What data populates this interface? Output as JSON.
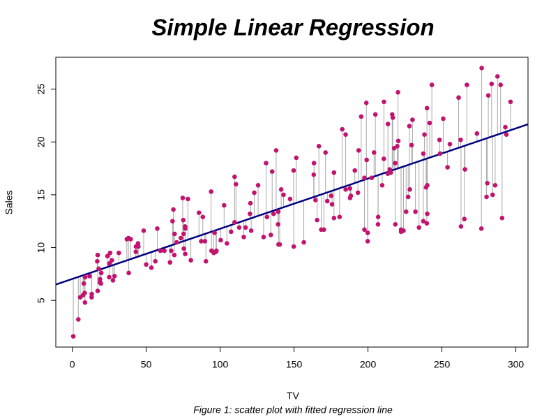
{
  "chart_data": {
    "type": "scatter",
    "title": "Simple Linear Regression",
    "xlabel": "TV",
    "ylabel": "Sales",
    "caption": "Figure 1: scatter plot with fitted regression line",
    "xlim": [
      -11.13,
      308.23
    ],
    "ylim": [
      0.584,
      28.016
    ],
    "xticks": [
      0,
      50,
      100,
      150,
      200,
      250,
      300
    ],
    "yticks": [
      5,
      10,
      15,
      20,
      25
    ],
    "grid": false,
    "regression_line": {
      "intercept": 7.0326,
      "slope": 0.0475,
      "color": "#000080"
    },
    "residual_color": "#a9a9a9",
    "series": [
      {
        "name": "Sales",
        "color": "#c2136f",
        "x": [
          230.1,
          44.5,
          17.2,
          151.5,
          180.8,
          8.7,
          57.5,
          120.2,
          8.6,
          199.8,
          66.1,
          214.7,
          23.8,
          97.5,
          204.1,
          195.4,
          67.8,
          281.4,
          69.2,
          147.3,
          218.4,
          237.4,
          13.2,
          228.3,
          62.3,
          262.9,
          142.9,
          240.1,
          248.8,
          70.6,
          292.9,
          112.9,
          97.2,
          265.6,
          95.7,
          290.7,
          266.9,
          74.7,
          43.1,
          228,
          202.5,
          177,
          293.6,
          206.9,
          25.1,
          175.1,
          89.7,
          239.9,
          227.2,
          66.9,
          199.8,
          100.4,
          216.4,
          182.6,
          262.7,
          198.9,
          7.3,
          136.2,
          210.8,
          210.7,
          53.5,
          261.3,
          239.3,
          102.7,
          131.1,
          69,
          31.5,
          139.3,
          237.4,
          216.8,
          199.1,
          109.8,
          26.8,
          129.4,
          213.4,
          16.9,
          27.5,
          120.5,
          5.4,
          116,
          76.4,
          239.8,
          75.3,
          68.4,
          213.5,
          193.2,
          76.3,
          110.7,
          88.3,
          109.8,
          134.3,
          28.6,
          217.7,
          250.9,
          107.4,
          163.3,
          197.6,
          184.9,
          289.7,
          135.2,
          222.4,
          296.4,
          280.2,
          187.9,
          238.2,
          137.9,
          25,
          90.4,
          13.1,
          255.4,
          225.8,
          241.7,
          175.7,
          209.6,
          78.2,
          75.1,
          139.2,
          76.4,
          125.7,
          19.4,
          141.3,
          18.8,
          224,
          123.1,
          229.5,
          87.2,
          7.8,
          80.2,
          220.3,
          59.6,
          0.7,
          265.2,
          8.4,
          219.8,
          36.9,
          48.3,
          25.6,
          273.7,
          43,
          184.9,
          73.4,
          193.7,
          220.5,
          104.6,
          96.2,
          140.3,
          240.1,
          243.2,
          38,
          44.7,
          280.7,
          121,
          197.6,
          171.3,
          187.8,
          4.1,
          93.9,
          149.8,
          11.7,
          131.7,
          172.5,
          85.7,
          188.4,
          163.5,
          117.2,
          234.5,
          17.9,
          206.8,
          215.4,
          284.3,
          50,
          164.5,
          19.6,
          168.4,
          222.4,
          276.9,
          248.4,
          170.2,
          276.7,
          165.6,
          156.6,
          218.5,
          56.2,
          287.6,
          253.8,
          205,
          139.5,
          191.1,
          286,
          18.7,
          39.5,
          75.5,
          17.2,
          166.8,
          149.7,
          38.2,
          94.2,
          177,
          283.6,
          232.1
        ],
        "values": [
          22.1,
          10.4,
          9.3,
          18.5,
          12.9,
          7.2,
          11.8,
          13.2,
          4.8,
          10.6,
          8.6,
          17.4,
          9.2,
          9.7,
          19,
          22.4,
          12.5,
          24.4,
          11.3,
          14.6,
          18,
          12.5,
          5.6,
          15.5,
          9.7,
          12,
          15,
          15.9,
          18.9,
          10.5,
          21.4,
          11.9,
          9.6,
          17.4,
          9.5,
          12.8,
          25.4,
          14.7,
          10.1,
          21.5,
          16.6,
          17.1,
          20.7,
          12.9,
          8.5,
          14.9,
          10.6,
          23.2,
          14.8,
          9.7,
          11.4,
          10.7,
          22.6,
          21.2,
          20.2,
          23.7,
          5.5,
          13.2,
          23.8,
          18.4,
          8.1,
          24.2,
          15.7,
          14,
          18,
          9.3,
          9.5,
          13.4,
          18.9,
          22.3,
          18.3,
          12.4,
          8.8,
          11,
          17,
          8.7,
          6.9,
          14.2,
          5.3,
          11,
          11.8,
          12.3,
          11.3,
          13.6,
          21.7,
          15.2,
          12,
          16,
          12.9,
          16.7,
          11.2,
          7.3,
          19.4,
          22.2,
          11.5,
          16.9,
          11.7,
          15.5,
          25.4,
          17.2,
          11.7,
          23.8,
          14.8,
          14.7,
          20.7,
          19.2,
          7.2,
          8.7,
          5.3,
          19.8,
          13.4,
          21.8,
          14.1,
          15.9,
          14.6,
          12.6,
          12.2,
          9.4,
          15.9,
          6.6,
          15.5,
          7,
          11.6,
          15.2,
          19.7,
          10.6,
          6.6,
          8.8,
          24.7,
          9.7,
          1.6,
          12.7,
          5.7,
          19.6,
          10.8,
          11.6,
          9.5,
          20.8,
          9.6,
          20.7,
          10.9,
          19.2,
          20.1,
          10.4,
          11.4,
          10.3,
          13.2,
          25.4,
          10.9,
          10.1,
          16.1,
          11.6,
          16.6,
          19,
          15.6,
          3.2,
          15.3,
          10.1,
          7.3,
          12.9,
          14.4,
          13.3,
          14.9,
          18,
          11.9,
          11.9,
          8,
          12.2,
          17.1,
          15,
          8.4,
          14.5,
          7.6,
          11.7,
          11.5,
          27,
          20.2,
          11.7,
          11.8,
          12.6,
          10.5,
          12.2,
          8.7,
          26.2,
          17.6,
          22.6,
          10.3,
          17.3,
          15.9,
          6.7,
          10.8,
          9.9,
          5.9,
          19.6,
          17.3,
          7.6,
          9.7,
          12.8,
          25.5,
          13.4
        ]
      }
    ]
  }
}
